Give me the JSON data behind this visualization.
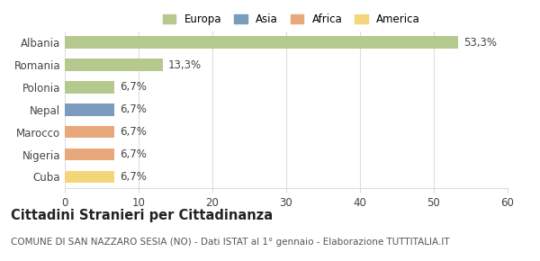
{
  "categories": [
    "Albania",
    "Romania",
    "Polonia",
    "Nepal",
    "Marocco",
    "Nigeria",
    "Cuba"
  ],
  "values": [
    53.3,
    13.3,
    6.7,
    6.7,
    6.7,
    6.7,
    6.7
  ],
  "labels": [
    "53,3%",
    "13,3%",
    "6,7%",
    "6,7%",
    "6,7%",
    "6,7%",
    "6,7%"
  ],
  "colors": [
    "#b5c98e",
    "#b5c98e",
    "#b5c98e",
    "#7b9bbf",
    "#e8a87c",
    "#e8a87c",
    "#f5d57a"
  ],
  "legend_items": [
    {
      "label": "Europa",
      "color": "#b5c98e"
    },
    {
      "label": "Asia",
      "color": "#7b9bbf"
    },
    {
      "label": "Africa",
      "color": "#e8a87c"
    },
    {
      "label": "America",
      "color": "#f5d57a"
    }
  ],
  "xlim": [
    0,
    60
  ],
  "xticks": [
    0,
    10,
    20,
    30,
    40,
    50,
    60
  ],
  "title": "Cittadini Stranieri per Cittadinanza",
  "subtitle": "COMUNE DI SAN NAZZARO SESIA (NO) - Dati ISTAT al 1° gennaio - Elaborazione TUTTITALIA.IT",
  "background_color": "#ffffff",
  "grid_color": "#dddddd",
  "bar_height": 0.55,
  "label_fontsize": 8.5,
  "tick_fontsize": 8.5,
  "title_fontsize": 10.5,
  "subtitle_fontsize": 7.5
}
